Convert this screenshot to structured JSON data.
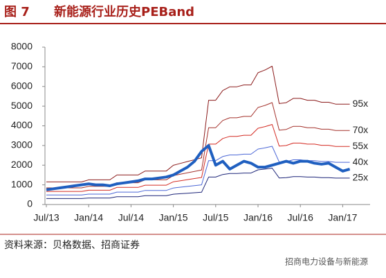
{
  "chart_data": {
    "type": "line",
    "figure_label": "图 7",
    "title": "新能源行业历史PEBand",
    "source": "资料来源：贝格数据、招商证券",
    "watermark": "招商电力设备与新能源",
    "x": [
      "Jul/13",
      "Aug/13",
      "Sep/13",
      "Oct/13",
      "Nov/13",
      "Dec/13",
      "Jan/14",
      "Feb/14",
      "Mar/14",
      "Apr/14",
      "May/14",
      "Jun/14",
      "Jul/14",
      "Aug/14",
      "Sep/14",
      "Oct/14",
      "Nov/14",
      "Dec/14",
      "Jan/15",
      "Feb/15",
      "Mar/15",
      "Apr/15",
      "May/15",
      "Jun/15",
      "Jul/15",
      "Aug/15",
      "Sep/15",
      "Oct/15",
      "Nov/15",
      "Dec/15",
      "Jan/16",
      "Feb/16",
      "Mar/16",
      "Apr/16",
      "May/16",
      "Jun/16",
      "Jul/16",
      "Aug/16",
      "Sep/16",
      "Oct/16",
      "Nov/16",
      "Dec/16",
      "Jan/17",
      "Feb/17"
    ],
    "xticks": [
      "Jul/13",
      "Jan/14",
      "Jul/14",
      "Jan/15",
      "Jul/15",
      "Jan/16",
      "Jul/16",
      "Jan/17"
    ],
    "ylim": [
      0,
      8000
    ],
    "yticks": [
      0,
      1000,
      2000,
      3000,
      4000,
      5000,
      6000,
      7000,
      8000
    ],
    "series": [
      {
        "name": "95x",
        "color": "#8b1a1a",
        "line_width": 1,
        "values": [
          1150,
          1150,
          1150,
          1150,
          1150,
          1150,
          1254,
          1254,
          1254,
          1254,
          1501,
          1501,
          1501,
          1501,
          1701,
          1701,
          1701,
          1701,
          1995,
          2090,
          2185,
          2280,
          2375,
          5301,
          5301,
          5795,
          5985,
          5985,
          6080,
          6080,
          6698,
          6840,
          7030,
          5130,
          5178,
          5396,
          5396,
          5301,
          5301,
          5197,
          5197,
          5102,
          5102,
          5102
        ]
      },
      {
        "name": "70x",
        "color": "#a3302a",
        "line_width": 1,
        "values": [
          847,
          847,
          847,
          847,
          847,
          847,
          924,
          924,
          924,
          924,
          1106,
          1106,
          1106,
          1106,
          1253,
          1253,
          1253,
          1253,
          1470,
          1540,
          1610,
          1680,
          1750,
          3906,
          3906,
          4270,
          4410,
          4410,
          4480,
          4480,
          4935,
          5040,
          5180,
          3780,
          3815,
          3976,
          3976,
          3906,
          3906,
          3829,
          3829,
          3759,
          3759,
          3759
        ]
      },
      {
        "name": "55x",
        "color": "#d42a22",
        "line_width": 1,
        "values": [
          666,
          666,
          666,
          666,
          666,
          666,
          726,
          726,
          726,
          726,
          869,
          869,
          869,
          869,
          985,
          985,
          985,
          985,
          1155,
          1210,
          1265,
          1320,
          1375,
          3069,
          3069,
          3355,
          3465,
          3465,
          3520,
          3520,
          3878,
          3960,
          4070,
          2970,
          2998,
          3124,
          3124,
          3069,
          3069,
          3009,
          3009,
          2954,
          2954,
          2954
        ]
      },
      {
        "name": "40x",
        "color": "#4a66d6",
        "line_width": 1,
        "values": [
          484,
          484,
          484,
          484,
          484,
          484,
          528,
          528,
          528,
          528,
          632,
          632,
          632,
          632,
          716,
          716,
          716,
          716,
          840,
          880,
          920,
          960,
          1000,
          2232,
          2232,
          2440,
          2520,
          2520,
          2560,
          2560,
          2820,
          2880,
          2960,
          2160,
          2180,
          2272,
          2272,
          2232,
          2232,
          2188,
          2188,
          2148,
          2148,
          2148
        ]
      },
      {
        "name": "25x",
        "color": "#1c2478",
        "line_width": 1,
        "values": [
          303,
          303,
          303,
          303,
          303,
          303,
          330,
          330,
          330,
          330,
          395,
          395,
          395,
          395,
          448,
          448,
          448,
          448,
          525,
          550,
          575,
          600,
          625,
          1395,
          1395,
          1525,
          1575,
          1575,
          1600,
          1600,
          1763,
          1800,
          1850,
          1350,
          1363,
          1420,
          1420,
          1395,
          1395,
          1368,
          1368,
          1343,
          1343,
          1343
        ]
      },
      {
        "color": "#1f5fc0",
        "line_width": 4,
        "values": [
          750,
          800,
          850,
          900,
          950,
          1000,
          1050,
          1000,
          1000,
          950,
          1050,
          1100,
          1150,
          1200,
          1300,
          1300,
          1350,
          1400,
          1500,
          1700,
          1900,
          2200,
          2700,
          3000,
          2000,
          2200,
          1800,
          2000,
          2200,
          2100,
          1900,
          1900,
          2000,
          2100,
          2200,
          2100,
          2200,
          2200,
          2100,
          2050,
          2100,
          1900,
          1700,
          1800
        ]
      }
    ]
  }
}
